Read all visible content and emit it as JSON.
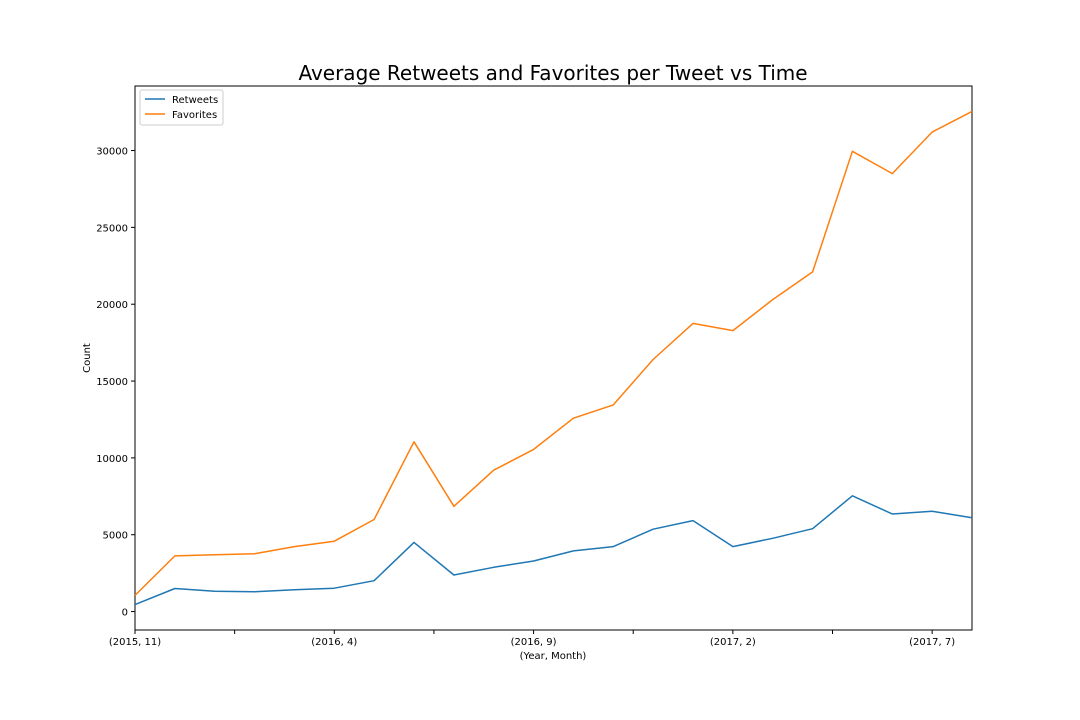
{
  "chart_data": {
    "type": "line",
    "title": "Average Retweets and Favorites per Tweet vs Time",
    "xlabel": "(Year, Month)",
    "ylabel": "Count",
    "x": [
      "(2015, 11)",
      "(2015, 12)",
      "(2016, 1)",
      "(2016, 2)",
      "(2016, 3)",
      "(2016, 4)",
      "(2016, 5)",
      "(2016, 6)",
      "(2016, 7)",
      "(2016, 8)",
      "(2016, 9)",
      "(2016, 10)",
      "(2016, 11)",
      "(2016, 12)",
      "(2017, 1)",
      "(2017, 2)",
      "(2017, 3)",
      "(2017, 4)",
      "(2017, 5)",
      "(2017, 6)",
      "(2017, 7)",
      "(2017, 8)"
    ],
    "x_tick_labels": [
      "(2015, 11)",
      "",
      "(2016, 4)",
      "",
      "(2016, 9)",
      "",
      "(2017, 2)",
      "",
      "(2017, 7)"
    ],
    "ylim": [
      -1200,
      34200
    ],
    "y_ticks": [
      0,
      5000,
      10000,
      15000,
      20000,
      25000,
      30000
    ],
    "y_tick_labels": [
      "0",
      "5000",
      "10000",
      "15000",
      "20000",
      "25000",
      "30000"
    ],
    "legend_position": "top-left",
    "grid": false,
    "series": [
      {
        "name": "Retweets",
        "color": "#1f77b4",
        "values": [
          450,
          1500,
          1320,
          1290,
          1420,
          1520,
          2010,
          4500,
          2380,
          2880,
          3290,
          3950,
          4230,
          5360,
          5920,
          4230,
          4770,
          5390,
          7530,
          6350,
          6530,
          6100
        ]
      },
      {
        "name": "Favorites",
        "color": "#ff7f0e",
        "values": [
          1050,
          3620,
          3700,
          3760,
          4230,
          4580,
          5990,
          11050,
          6850,
          9200,
          10550,
          12580,
          13450,
          16400,
          18750,
          18280,
          20300,
          22100,
          29950,
          28500,
          31200,
          32550
        ]
      }
    ]
  }
}
